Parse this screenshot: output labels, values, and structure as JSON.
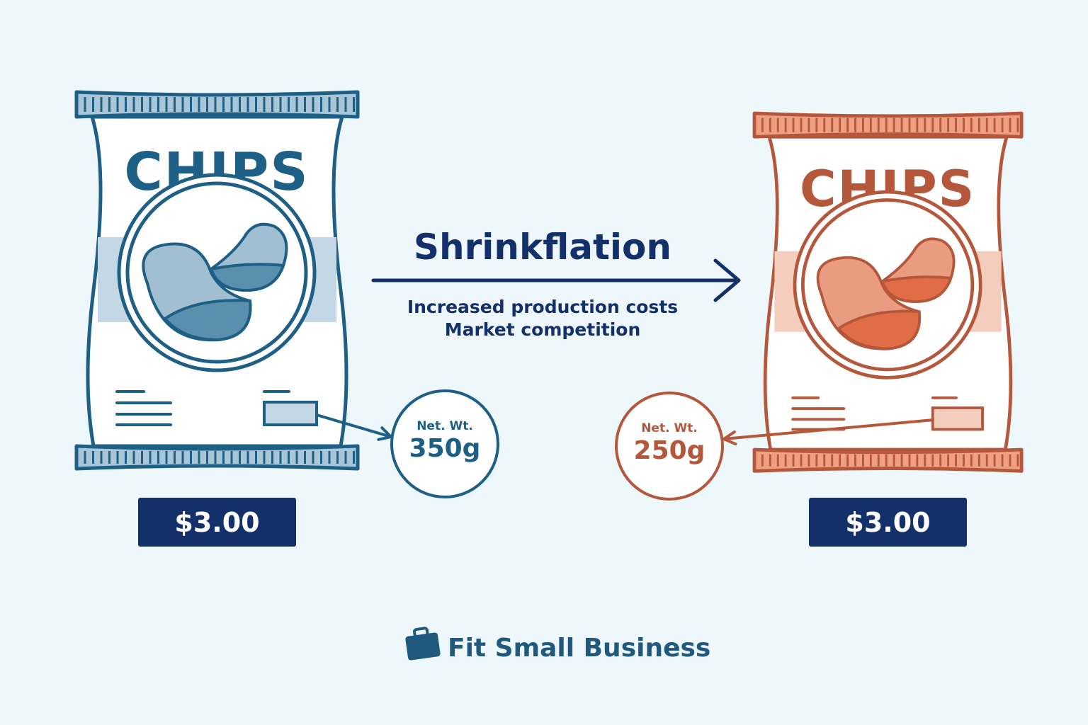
{
  "left_bag": {
    "brand": "CHIPS",
    "net_weight_label": "Net. Wt.",
    "net_weight": "350g",
    "price": "$3.00"
  },
  "right_bag": {
    "brand": "CHIPS",
    "net_weight_label": "Net. Wt.",
    "net_weight": "250g",
    "price": "$3.00"
  },
  "center": {
    "title": "Shrinkflation",
    "reasons": [
      "Increased production costs",
      "Market competition"
    ]
  },
  "footer": {
    "logo": "Fit Small Business"
  }
}
